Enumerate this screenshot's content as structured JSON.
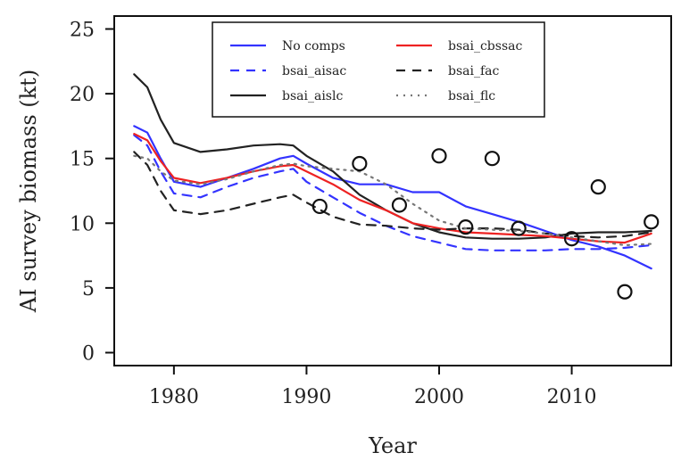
{
  "chart_data": {
    "type": "line",
    "xlabel": "Year",
    "ylabel": "AI survey biomass (kt)",
    "xlim": [
      1975.5,
      2017.5
    ],
    "ylim": [
      -1,
      26
    ],
    "x_ticks": [
      1980,
      1990,
      2000,
      2010
    ],
    "y_ticks": [
      0,
      5,
      10,
      15,
      20,
      25
    ],
    "grid": false,
    "legend_position": "top-center",
    "series": [
      {
        "name": "No comps",
        "color": "#3333ff",
        "dash": "solid",
        "x": [
          1977,
          1978,
          1979,
          1980,
          1982,
          1984,
          1986,
          1988,
          1989,
          1990,
          1992,
          1994,
          1996,
          1998,
          2000,
          2002,
          2004,
          2006,
          2008,
          2010,
          2012,
          2014,
          2016
        ],
        "y": [
          17.5,
          17.0,
          15.0,
          13.2,
          12.8,
          13.5,
          14.2,
          15.0,
          15.2,
          14.6,
          13.5,
          13.0,
          13.0,
          12.4,
          12.4,
          11.3,
          10.7,
          10.1,
          9.4,
          8.7,
          8.2,
          7.5,
          6.5
        ]
      },
      {
        "name": "bsai_aisac",
        "color": "#3333ff",
        "dash": "dashed",
        "x": [
          1977,
          1978,
          1979,
          1980,
          1982,
          1984,
          1986,
          1988,
          1989,
          1990,
          1992,
          1994,
          1996,
          1998,
          2000,
          2002,
          2004,
          2006,
          2008,
          2010,
          2012,
          2014,
          2016
        ],
        "y": [
          16.8,
          16.0,
          14.0,
          12.3,
          12.0,
          12.8,
          13.5,
          14.0,
          14.2,
          13.2,
          12.0,
          10.8,
          9.8,
          9.0,
          8.5,
          8.0,
          7.9,
          7.9,
          7.9,
          8.0,
          8.0,
          8.1,
          8.3
        ]
      },
      {
        "name": "bsai_aislc",
        "color": "#222222",
        "dash": "solid",
        "x": [
          1977,
          1978,
          1979,
          1980,
          1982,
          1984,
          1986,
          1988,
          1989,
          1990,
          1992,
          1994,
          1996,
          1998,
          2000,
          2002,
          2004,
          2006,
          2008,
          2010,
          2012,
          2014,
          2016
        ],
        "y": [
          21.5,
          20.5,
          18.0,
          16.2,
          15.5,
          15.7,
          16.0,
          16.1,
          16.0,
          15.2,
          14.0,
          12.2,
          11.0,
          10.0,
          9.3,
          8.9,
          8.8,
          8.8,
          8.9,
          9.2,
          9.3,
          9.3,
          9.4
        ]
      },
      {
        "name": "bsai_cbssac",
        "color": "#ee2222",
        "dash": "solid",
        "x": [
          1977,
          1978,
          1979,
          1980,
          1982,
          1984,
          1986,
          1988,
          1989,
          1990,
          1992,
          1994,
          1996,
          1998,
          2000,
          2002,
          2004,
          2006,
          2008,
          2010,
          2012,
          2014,
          2016
        ],
        "y": [
          16.9,
          16.4,
          14.8,
          13.5,
          13.1,
          13.5,
          14.0,
          14.4,
          14.5,
          14.0,
          13.0,
          11.8,
          11.0,
          10.0,
          9.6,
          9.3,
          9.2,
          9.1,
          9.0,
          8.8,
          8.6,
          8.5,
          9.2
        ]
      },
      {
        "name": "bsai_fac",
        "color": "#222222",
        "dash": "dashed",
        "x": [
          1977,
          1978,
          1979,
          1980,
          1982,
          1984,
          1986,
          1988,
          1989,
          1990,
          1992,
          1994,
          1996,
          1998,
          2000,
          2002,
          2004,
          2006,
          2008,
          2010,
          2012,
          2014,
          2016
        ],
        "y": [
          15.5,
          14.5,
          12.5,
          11.0,
          10.7,
          11.0,
          11.5,
          12.0,
          12.2,
          11.6,
          10.5,
          9.9,
          9.8,
          9.6,
          9.5,
          9.6,
          9.6,
          9.5,
          9.2,
          9.0,
          8.9,
          9.0,
          9.3
        ]
      },
      {
        "name": "bsai_flc",
        "color": "#777777",
        "dash": "dotted",
        "x": [
          1977,
          1978,
          1979,
          1980,
          1982,
          1984,
          1986,
          1988,
          1989,
          1990,
          1992,
          1994,
          1996,
          1998,
          2000,
          2002,
          2004,
          2006,
          2008,
          2010,
          2012,
          2014,
          2016
        ],
        "y": [
          15.2,
          15.0,
          14.0,
          13.3,
          13.0,
          13.4,
          14.0,
          14.5,
          14.6,
          14.4,
          14.2,
          14.0,
          13.0,
          11.5,
          10.2,
          9.6,
          9.5,
          9.4,
          9.2,
          8.9,
          8.6,
          8.3,
          8.4
        ]
      }
    ],
    "observations": {
      "marker": "open-circle",
      "x": [
        1991,
        1994,
        1997,
        2000,
        2002,
        2004,
        2006,
        2010,
        2012,
        2014,
        2016
      ],
      "y": [
        11.3,
        14.6,
        11.4,
        15.2,
        9.7,
        15.0,
        9.6,
        8.8,
        12.8,
        4.7,
        10.1
      ]
    }
  }
}
